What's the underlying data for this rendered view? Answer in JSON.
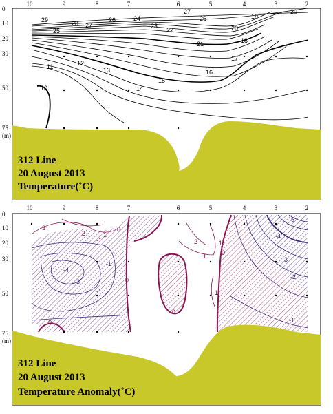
{
  "stations": [
    "10",
    "9",
    "8",
    "7",
    "6",
    "5",
    "4",
    "3",
    "2"
  ],
  "depths": [
    "0",
    "10",
    "20",
    "30",
    "50",
    "75"
  ],
  "depth_unit": "(m)",
  "colors": {
    "land": "#c8c82a",
    "anomaly_pos": "#8a1552",
    "anomaly_neg": "#4a3ca0"
  },
  "panel_top": {
    "line_label": "312 Line",
    "date_label": "20 August 2013",
    "variable_label": "Temperature(˚C)",
    "contour_labels": [
      "29",
      "28",
      "27",
      "26",
      "25",
      "24",
      "23",
      "22",
      "21",
      "20",
      "19",
      "20",
      "27",
      "26",
      "18",
      "17",
      "16",
      "15",
      "14",
      "13",
      "12",
      "11",
      "10"
    ]
  },
  "panel_bottom": {
    "line_label": "312 Line",
    "date_label": "20 August 2013",
    "variable_label": "Temperature Anomaly(˚C)",
    "contour_labels": [
      "-3",
      "-2",
      "-1",
      "-4",
      "-3",
      "0",
      "1",
      "-1",
      "0",
      "-1",
      "0",
      "0",
      "2",
      "1",
      "-1",
      "1",
      "-5",
      "-4",
      "-3",
      "-2",
      "-1",
      "0"
    ]
  }
}
